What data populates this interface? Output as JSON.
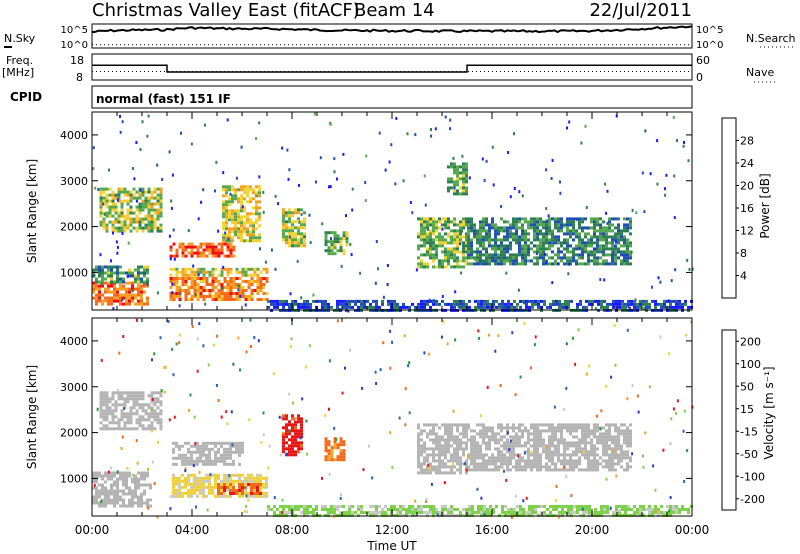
{
  "header": {
    "station": "Christmas Valley East (fitACF)",
    "beam": "Beam 14",
    "date": "22/Jul/2011"
  },
  "status_panel": {
    "nsky_label": "N.Sky",
    "nsearch_label": "N.Search",
    "noise_ticks": [
      "10^5",
      "10^0"
    ],
    "freq_label": "Freq.",
    "freq_unit": "[MHz]",
    "freq_ticks": [
      "18",
      "8"
    ],
    "nave_label": "Nave",
    "nave_ticks": [
      "60",
      "0"
    ],
    "cpid_label": "CPID",
    "cpid_value": "normal (fast) 151 IF"
  },
  "colors": {
    "power_scale": [
      "#1a1aff",
      "#1f4fb4",
      "#2e7f53",
      "#55a84e",
      "#f2d235",
      "#f5a023",
      "#f56a1f",
      "#f20c0c"
    ],
    "velocity_scale": [
      "#2840c8",
      "#2a64b4",
      "#1e9a3c",
      "#7ed24a",
      "#c8c8c8",
      "#f0d03a",
      "#f2a32a",
      "#f06a1c",
      "#e81515"
    ],
    "ground_scatter": "#b4b4b4"
  },
  "chart_data": [
    {
      "type": "line",
      "panel": "noise",
      "y_scale": "log",
      "ylim": [
        1,
        100000
      ],
      "series": [
        {
          "name": "N.Sky",
          "x": [
            "00:00",
            "01:00",
            "02:00",
            "03:00",
            "04:00",
            "05:00",
            "06:00",
            "07:00",
            "08:00",
            "09:00",
            "10:00",
            "11:00",
            "12:00",
            "13:00",
            "14:00",
            "15:00",
            "16:00",
            "17:00",
            "18:00",
            "19:00",
            "20:00",
            "21:00",
            "22:00",
            "23:00",
            "24:00"
          ],
          "values": [
            3000,
            8000,
            10000,
            12000,
            35000,
            25000,
            20000,
            20000,
            15000,
            10000,
            8000,
            7000,
            6000,
            6000,
            5000,
            5000,
            5000,
            5000,
            5000,
            5000,
            6000,
            10000,
            20000,
            40000,
            80000
          ]
        },
        {
          "name": "N.Search",
          "x": [
            "00:00",
            "24:00"
          ],
          "values": [
            2,
            2
          ]
        }
      ]
    },
    {
      "type": "line",
      "panel": "frequency",
      "ylim": [
        8,
        18
      ],
      "y2lim": [
        0,
        60
      ],
      "series": [
        {
          "name": "Freq.",
          "x": [
            "00:00",
            "03:00",
            "03:00",
            "15:00",
            "15:00",
            "24:00"
          ],
          "values": [
            14,
            14,
            10.2,
            10.2,
            14,
            14
          ]
        },
        {
          "name": "Nave",
          "x": [
            "00:00",
            "24:00"
          ],
          "values": [
            15,
            15
          ]
        }
      ]
    },
    {
      "type": "heatmap",
      "panel": "power",
      "title": "",
      "xlabel": "",
      "ylabel": "Slant Range [km]",
      "ylim": [
        180,
        4500
      ],
      "y_ticks": [
        "1000",
        "2000",
        "3000",
        "4000"
      ],
      "colorbar_label": "Power [dB]",
      "colorbar_ticks": [
        "4",
        "8",
        "12",
        "16",
        "20",
        "24",
        "28"
      ],
      "clim": [
        0,
        32
      ],
      "regions": [
        {
          "x": [
            0.0,
            2.2
          ],
          "y": [
            300,
            800
          ],
          "value": 25
        },
        {
          "x": [
            0.0,
            2.2
          ],
          "y": [
            800,
            1150
          ],
          "value": 12
        },
        {
          "x": [
            0.3,
            2.8
          ],
          "y": [
            1900,
            2850
          ],
          "value": 16
        },
        {
          "x": [
            3.1,
            7.0
          ],
          "y": [
            400,
            900
          ],
          "value": 24
        },
        {
          "x": [
            3.1,
            5.7
          ],
          "y": [
            1350,
            1650
          ],
          "value": 26
        },
        {
          "x": [
            3.1,
            7.0
          ],
          "y": [
            950,
            1100
          ],
          "value": 18
        },
        {
          "x": [
            5.2,
            6.7
          ],
          "y": [
            1700,
            2900
          ],
          "value": 18
        },
        {
          "x": [
            7.6,
            8.5
          ],
          "y": [
            1600,
            2400
          ],
          "value": 16
        },
        {
          "x": [
            9.3,
            10.2
          ],
          "y": [
            1400,
            1900
          ],
          "value": 14
        },
        {
          "x": [
            13.0,
            15.0
          ],
          "y": [
            1100,
            2200
          ],
          "value": 14
        },
        {
          "x": [
            14.2,
            15.0
          ],
          "y": [
            2700,
            3400
          ],
          "value": 13
        },
        {
          "x": [
            15.0,
            21.5
          ],
          "y": [
            1200,
            2200
          ],
          "value": 10
        },
        {
          "x": [
            7.0,
            24.0
          ],
          "y": [
            180,
            400
          ],
          "value": 6
        }
      ]
    },
    {
      "type": "heatmap",
      "panel": "velocity",
      "title": "",
      "xlabel": "Time UT",
      "ylabel": "Slant Range [km]",
      "ylim": [
        180,
        4500
      ],
      "x_ticks": [
        "00:00",
        "04:00",
        "08:00",
        "12:00",
        "16:00",
        "20:00",
        "00:00"
      ],
      "y_ticks": [
        "1000",
        "2000",
        "3000",
        "4000"
      ],
      "colorbar_label": "Velocity [m s⁻¹]",
      "colorbar_ticks": [
        "200",
        "100",
        "50",
        "15",
        "-15",
        "-50",
        "-100",
        "-200"
      ],
      "clim": [
        -250,
        250
      ],
      "regions": [
        {
          "x": [
            0.0,
            2.3
          ],
          "y": [
            400,
            1150
          ],
          "value": 0
        },
        {
          "x": [
            0.3,
            2.8
          ],
          "y": [
            2100,
            2900
          ],
          "value": 0
        },
        {
          "x": [
            3.2,
            7.0
          ],
          "y": [
            600,
            1100
          ],
          "value": 40
        },
        {
          "x": [
            5.0,
            6.8
          ],
          "y": [
            650,
            900
          ],
          "value": 180
        },
        {
          "x": [
            3.2,
            6.0
          ],
          "y": [
            1300,
            1800
          ],
          "value": 0
        },
        {
          "x": [
            7.6,
            8.4
          ],
          "y": [
            1500,
            2400
          ],
          "value": 220
        },
        {
          "x": [
            9.3,
            10.1
          ],
          "y": [
            1400,
            1900
          ],
          "value": 150
        },
        {
          "x": [
            13.0,
            15.0
          ],
          "y": [
            1100,
            2200
          ],
          "value": 0
        },
        {
          "x": [
            15.0,
            21.5
          ],
          "y": [
            1200,
            2200
          ],
          "value": 0
        },
        {
          "x": [
            7.0,
            24.0
          ],
          "y": [
            180,
            420
          ],
          "value": -40
        }
      ]
    }
  ]
}
